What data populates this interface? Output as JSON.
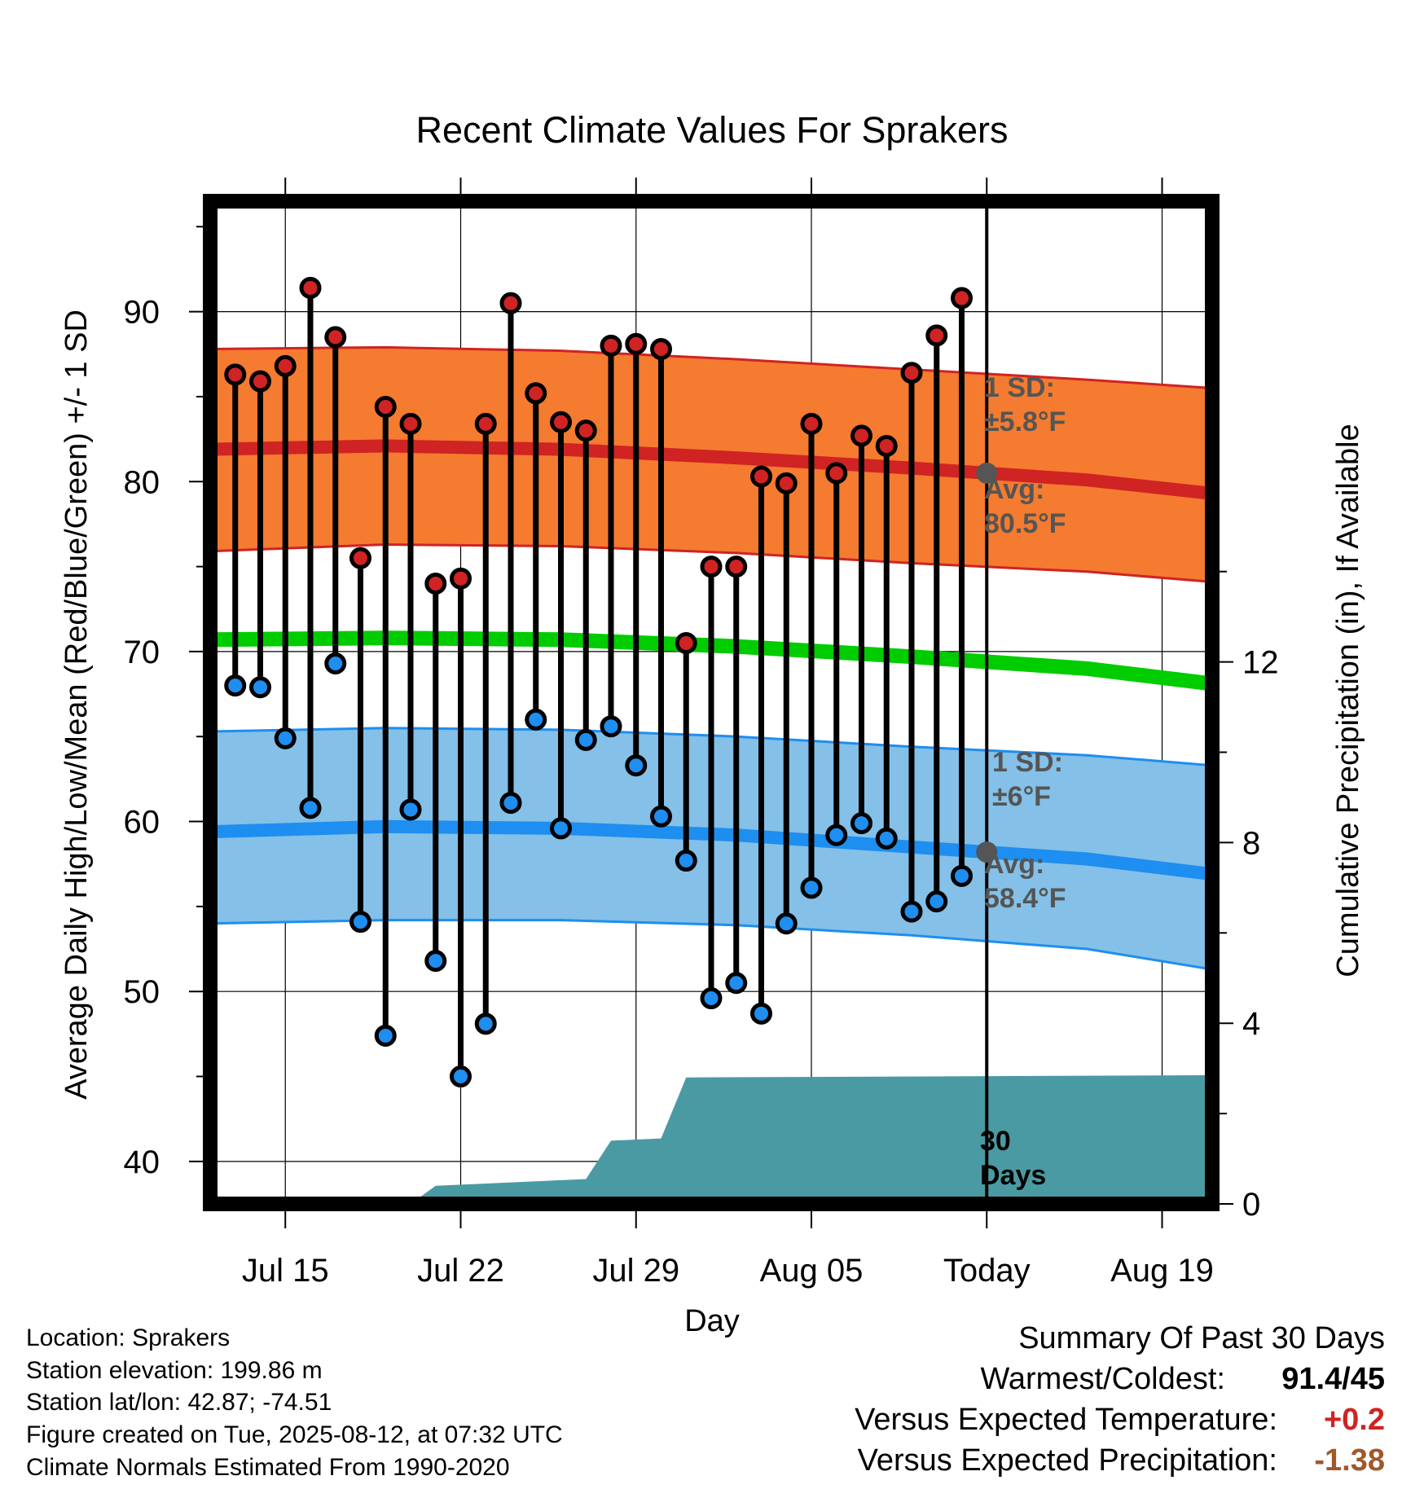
{
  "chart_data": {
    "type": "line",
    "title": "Recent Climate Values For Sprakers",
    "xlabel": "Day",
    "ylabel": "Average Daily High/Low/Mean (Red/Blue/Green) +/- 1 SD",
    "y2label": "Cumulative Precipitation (in), If Available",
    "xlim": [
      "Jul 12",
      "Aug 21"
    ],
    "ylim": [
      37.5,
      96.5
    ],
    "y2lim": [
      0,
      22.2
    ],
    "x_ticks": [
      {
        "date": "Jul 15",
        "label": "Jul 15"
      },
      {
        "date": "Jul 22",
        "label": "Jul 22"
      },
      {
        "date": "Jul 29",
        "label": "Jul 29"
      },
      {
        "date": "Aug 05",
        "label": "Aug 05"
      },
      {
        "date": "Aug 12",
        "label": "Today"
      },
      {
        "date": "Aug 19",
        "label": "Aug 19"
      }
    ],
    "y_ticks": [
      "40",
      "50",
      "60",
      "70",
      "80",
      "90"
    ],
    "y2_ticks": [
      "0",
      "4",
      "8",
      "12"
    ],
    "grid": true,
    "today": "Aug 12",
    "dates": [
      "Jul 13",
      "Jul 14",
      "Jul 15",
      "Jul 16",
      "Jul 17",
      "Jul 18",
      "Jul 19",
      "Jul 20",
      "Jul 21",
      "Jul 22",
      "Jul 23",
      "Jul 24",
      "Jul 25",
      "Jul 26",
      "Jul 27",
      "Jul 28",
      "Jul 29",
      "Jul 30",
      "Jul 31",
      "Aug 01",
      "Aug 02",
      "Aug 03",
      "Aug 04",
      "Aug 05",
      "Aug 06",
      "Aug 07",
      "Aug 08",
      "Aug 09",
      "Aug 10",
      "Aug 11"
    ],
    "daily_high": [
      86.3,
      85.9,
      86.8,
      91.4,
      88.5,
      75.5,
      84.4,
      83.4,
      74.0,
      74.3,
      83.4,
      90.5,
      85.2,
      83.5,
      83.0,
      88.0,
      88.1,
      87.8,
      70.5,
      75.0,
      75.0,
      80.3,
      79.9,
      83.4,
      80.5,
      82.7,
      82.1,
      86.4,
      88.6,
      90.8
    ],
    "daily_low": [
      68.0,
      67.9,
      64.9,
      60.8,
      69.3,
      54.1,
      47.4,
      60.7,
      51.8,
      45.0,
      48.1,
      61.1,
      66.0,
      59.6,
      64.8,
      65.6,
      63.3,
      60.3,
      57.7,
      49.6,
      50.5,
      48.7,
      54.0,
      56.1,
      59.2,
      59.9,
      59.0,
      54.7,
      55.3,
      56.8
    ],
    "normals_dates": [
      "Jul 12",
      "Jul 19",
      "Jul 26",
      "Aug 02",
      "Aug 09",
      "Aug 16",
      "Aug 21"
    ],
    "normal_high": [
      81.9,
      82.1,
      81.9,
      81.4,
      80.8,
      80.1,
      79.3
    ],
    "normal_high_sd_upper": [
      87.8,
      87.9,
      87.7,
      87.2,
      86.6,
      86.0,
      85.5
    ],
    "normal_high_sd_lower": [
      75.9,
      76.3,
      76.2,
      75.8,
      75.2,
      74.7,
      74.1
    ],
    "normal_mean": [
      70.7,
      70.8,
      70.7,
      70.3,
      69.7,
      69.0,
      68.1
    ],
    "normal_low": [
      59.4,
      59.7,
      59.6,
      59.2,
      58.5,
      57.8,
      56.9
    ],
    "normal_low_sd_upper": [
      65.3,
      65.5,
      65.4,
      65.0,
      64.4,
      63.9,
      63.3
    ],
    "normal_low_sd_lower": [
      54.0,
      54.2,
      54.2,
      53.9,
      53.3,
      52.5,
      51.3
    ],
    "precip_steps": [
      {
        "from": "Jul 12",
        "to": "Jul 20",
        "value": 0.0
      },
      {
        "from": "Jul 20",
        "to": "Jul 21",
        "value": 0.4
      },
      {
        "from": "Jul 21",
        "to": "Jul 27",
        "value": 0.55
      },
      {
        "from": "Jul 27",
        "to": "Jul 28",
        "value": 1.4
      },
      {
        "from": "Jul 28",
        "to": "Jul 30",
        "value": 1.45
      },
      {
        "from": "Jul 30",
        "to": "Jul 31",
        "value": 2.8
      },
      {
        "from": "Jul 31",
        "to": "Aug 21",
        "value": 2.85
      }
    ],
    "annotations": {
      "high_sd": [
        "1 SD:",
        "±5.8°F"
      ],
      "high_avg": [
        "Avg:",
        "80.5°F"
      ],
      "low_sd": [
        "1 SD:",
        "±6°F"
      ],
      "low_avg": [
        "Avg:",
        "58.4°F"
      ],
      "days": [
        "30",
        "Days"
      ]
    },
    "colors": {
      "high_band": "#f47b2f",
      "high_line": "#d02323",
      "mean_line": "#00cc00",
      "low_band": "#84c0e7",
      "low_line": "#1e8ef0",
      "precip": "#4a9aa3",
      "avg_marker": "#555555",
      "annotation_text": "#555555"
    }
  },
  "info": {
    "location": "Location: Sprakers",
    "elevation": "Station elevation: 199.86 m",
    "latlon": "Station lat/lon: 42.87; -74.51",
    "created": "Figure created on Tue, 2025-08-12, at 07:32 UTC",
    "normals": "Climate Normals Estimated From 1990-2020"
  },
  "summary": {
    "title": "Summary Of Past 30 Days",
    "warmest_label": "Warmest/Coldest:",
    "warmest_value": "91.4/45",
    "temp_label": "Versus Expected Temperature:",
    "temp_value": "+0.2",
    "temp_color": "#d02323",
    "precip_label": "Versus Expected Precipitation:",
    "precip_value": "-1.38",
    "precip_color": "#a0582a"
  }
}
